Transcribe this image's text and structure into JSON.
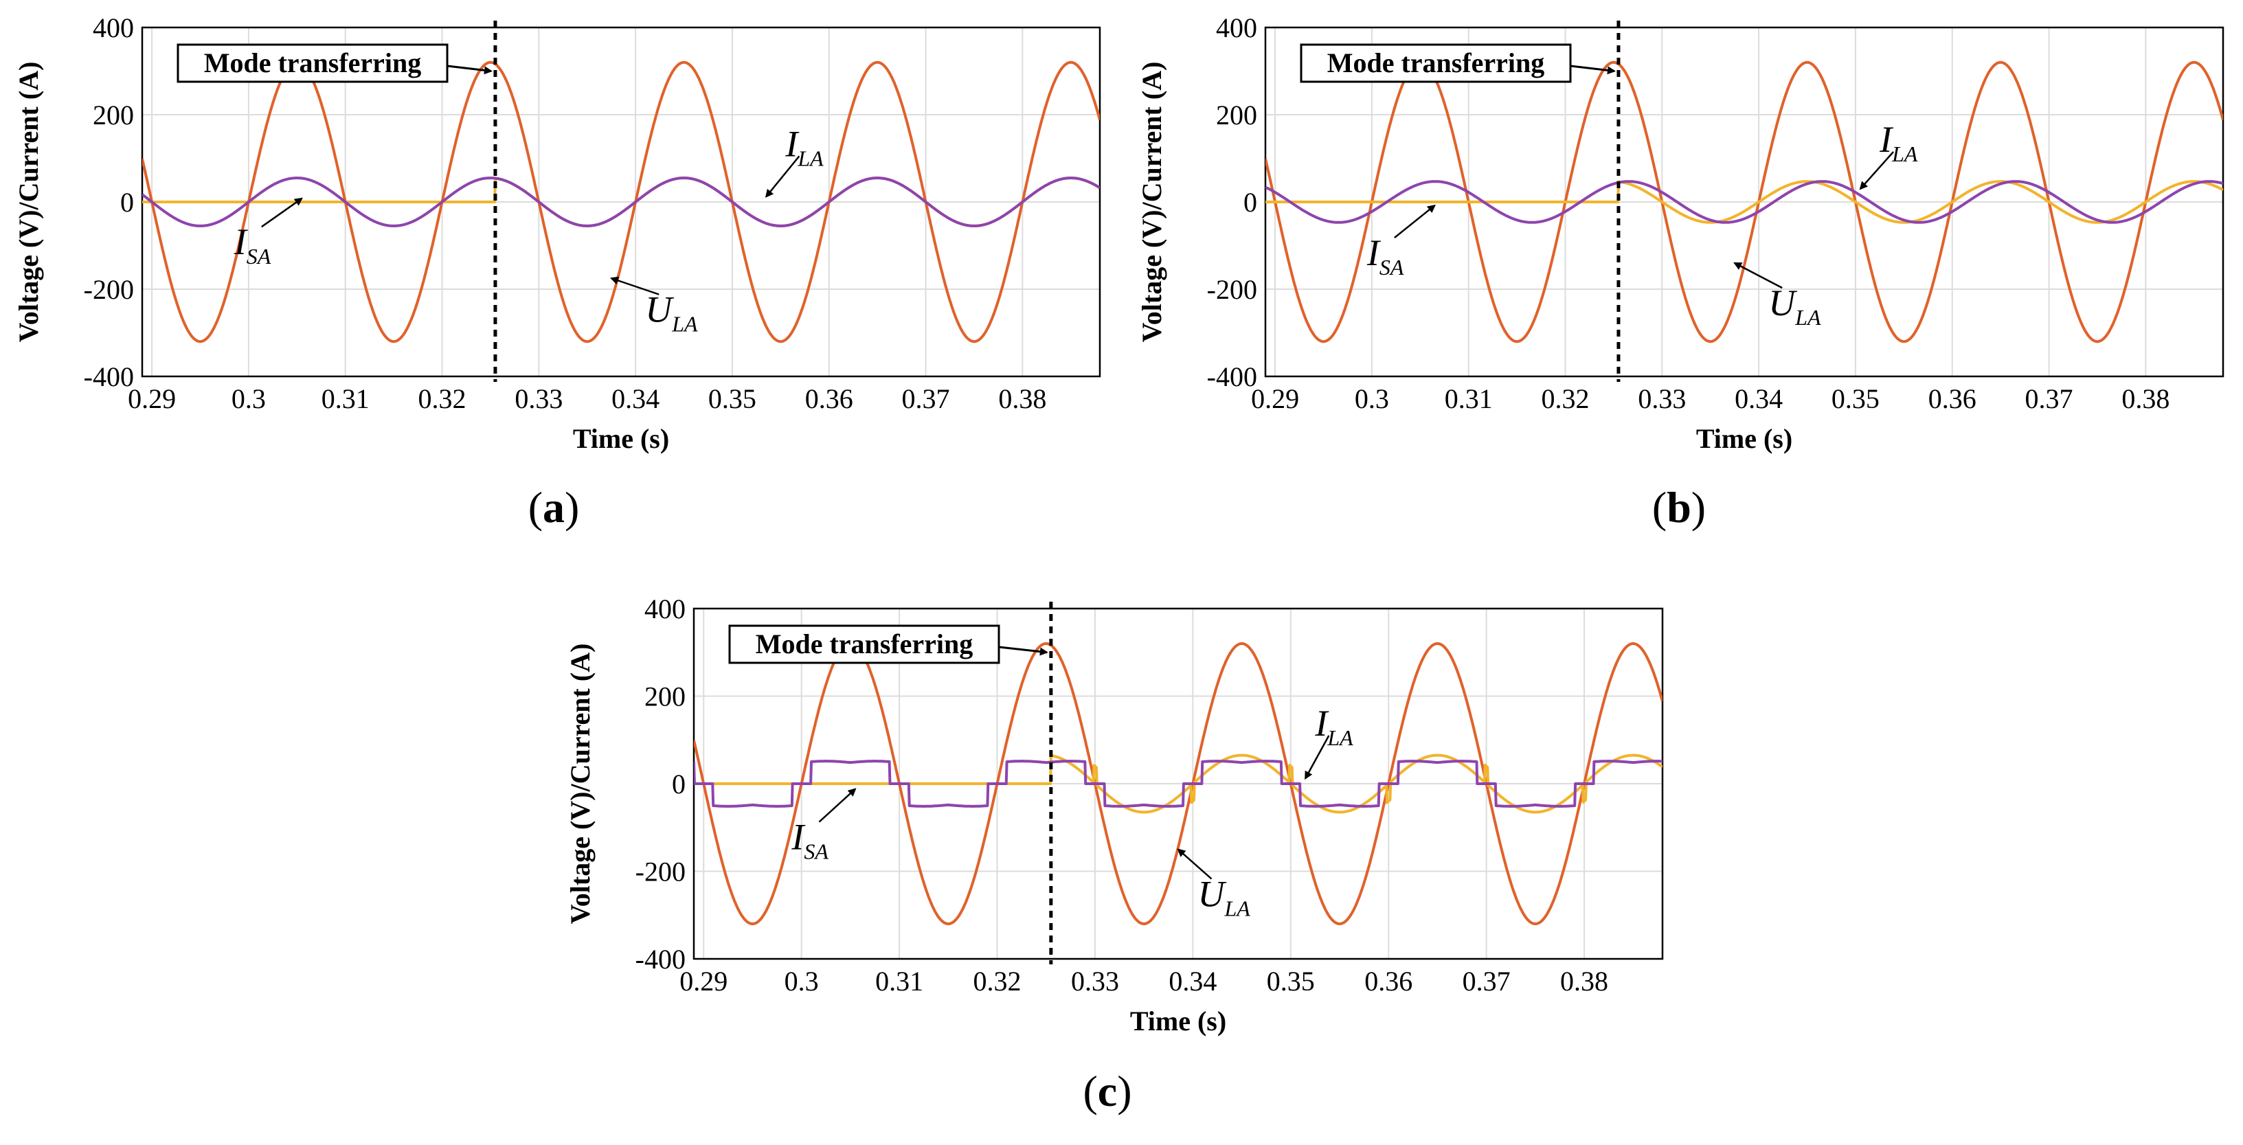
{
  "colors": {
    "ula": "#E0622B",
    "ila": "#F2B42C",
    "isa": "#8E44AD",
    "grid": "#dcdcdc",
    "marker": "#000000"
  },
  "chart_data": [
    {
      "panel": "a",
      "type": "line",
      "caption_letter": "a",
      "xlabel": "Time (s)",
      "ylabel": "Voltage (V)/Current (A)",
      "xlim": [
        0.289,
        0.388
      ],
      "ylim": [
        -400,
        400
      ],
      "xticks": [
        0.29,
        0.3,
        0.31,
        0.32,
        0.33,
        0.34,
        0.35,
        0.36,
        0.37,
        0.38
      ],
      "xtick_labels": [
        "0.29",
        "0.3",
        "0.31",
        "0.32",
        "0.33",
        "0.34",
        "0.35",
        "0.36",
        "0.37",
        "0.38"
      ],
      "yticks": [
        -400,
        -200,
        0,
        200,
        400
      ],
      "ytick_labels": [
        "-400",
        "-200",
        "0",
        "200",
        "400"
      ],
      "transfer_time": 0.3255,
      "annotation": {
        "text": "Mode transferring",
        "x": 0.3255,
        "y": 300
      },
      "frequency_hz": 50,
      "series": [
        {
          "name": "U_LA",
          "label_main": "U",
          "label_sub": "LA",
          "kind": "sine",
          "amplitude": 320,
          "phase_deg": 0,
          "pre_transfer": "sine",
          "arrow_to": [
            0.3375,
            -175
          ],
          "label_at": [
            0.341,
            -275
          ]
        },
        {
          "name": "I_LA",
          "label_main": "I",
          "label_sub": "LA",
          "kind": "sine",
          "amplitude": 55,
          "phase_deg": 0,
          "pre_transfer": "zero",
          "arrow_to": [
            0.3535,
            12
          ],
          "label_at": [
            0.3555,
            105
          ]
        },
        {
          "name": "I_SA",
          "label_main": "I",
          "label_sub": "SA",
          "kind": "sine",
          "amplitude": 55,
          "phase_deg": 0,
          "pre_transfer": "sine",
          "arrow_to": [
            0.3055,
            8
          ],
          "label_at": [
            0.2985,
            -120
          ]
        }
      ]
    },
    {
      "panel": "b",
      "type": "line",
      "caption_letter": "b",
      "xlabel": "Time (s)",
      "ylabel": "Voltage (V)/Current (A)",
      "xlim": [
        0.289,
        0.388
      ],
      "ylim": [
        -400,
        400
      ],
      "xticks": [
        0.29,
        0.3,
        0.31,
        0.32,
        0.33,
        0.34,
        0.35,
        0.36,
        0.37,
        0.38
      ],
      "xtick_labels": [
        "0.29",
        "0.3",
        "0.31",
        "0.32",
        "0.33",
        "0.34",
        "0.35",
        "0.36",
        "0.37",
        "0.38"
      ],
      "yticks": [
        -400,
        -200,
        0,
        200,
        400
      ],
      "ytick_labels": [
        "-400",
        "-200",
        "0",
        "200",
        "400"
      ],
      "transfer_time": 0.3255,
      "annotation": {
        "text": "Mode transferring",
        "x": 0.3255,
        "y": 300
      },
      "frequency_hz": 50,
      "series": [
        {
          "name": "U_LA",
          "label_main": "U",
          "label_sub": "LA",
          "kind": "sine",
          "amplitude": 320,
          "phase_deg": 0,
          "pre_transfer": "sine",
          "arrow_to": [
            0.3375,
            -140
          ],
          "label_at": [
            0.341,
            -260
          ]
        },
        {
          "name": "I_LA",
          "label_main": "I",
          "label_sub": "LA",
          "kind": "sine",
          "amplitude": 47,
          "phase_deg": 0,
          "pre_transfer": "zero",
          "arrow_to": [
            0.3505,
            30
          ],
          "label_at": [
            0.3525,
            115
          ]
        },
        {
          "name": "I_SA",
          "label_main": "I",
          "label_sub": "SA",
          "kind": "sine",
          "amplitude": 47,
          "phase_deg": -28,
          "pre_transfer": "sine",
          "arrow_to": [
            0.3065,
            -8
          ],
          "label_at": [
            0.2995,
            -145
          ]
        }
      ]
    },
    {
      "panel": "c",
      "type": "line",
      "caption_letter": "c",
      "xlabel": "Time (s)",
      "ylabel": "Voltage (V)/Current (A)",
      "xlim": [
        0.289,
        0.388
      ],
      "ylim": [
        -400,
        400
      ],
      "xticks": [
        0.29,
        0.3,
        0.31,
        0.32,
        0.33,
        0.34,
        0.35,
        0.36,
        0.37,
        0.38
      ],
      "xtick_labels": [
        "0.29",
        "0.3",
        "0.31",
        "0.32",
        "0.33",
        "0.34",
        "0.35",
        "0.36",
        "0.37",
        "0.38"
      ],
      "yticks": [
        -400,
        -200,
        0,
        200,
        400
      ],
      "ytick_labels": [
        "-400",
        "-200",
        "0",
        "200",
        "400"
      ],
      "transfer_time": 0.3255,
      "annotation": {
        "text": "Mode transferring",
        "x": 0.3255,
        "y": 300
      },
      "frequency_hz": 50,
      "series": [
        {
          "name": "U_LA",
          "label_main": "U",
          "label_sub": "LA",
          "kind": "sine",
          "amplitude": 320,
          "phase_deg": 0,
          "pre_transfer": "sine",
          "arrow_to": [
            0.3385,
            -150
          ],
          "label_at": [
            0.3405,
            -280
          ]
        },
        {
          "name": "I_LA",
          "label_main": "I",
          "label_sub": "LA",
          "kind": "sine",
          "amplitude": 65,
          "phase_deg": 0,
          "pre_transfer": "zero",
          "spikes": true,
          "arrow_to": [
            0.3515,
            12
          ],
          "label_at": [
            0.3525,
            110
          ]
        },
        {
          "name": "I_SA",
          "label_main": "I",
          "label_sub": "SA",
          "kind": "square",
          "amplitude": 55,
          "phase_deg": 0,
          "pre_transfer": "square",
          "arrow_to": [
            0.3055,
            -12
          ],
          "label_at": [
            0.299,
            -150
          ]
        }
      ]
    }
  ]
}
